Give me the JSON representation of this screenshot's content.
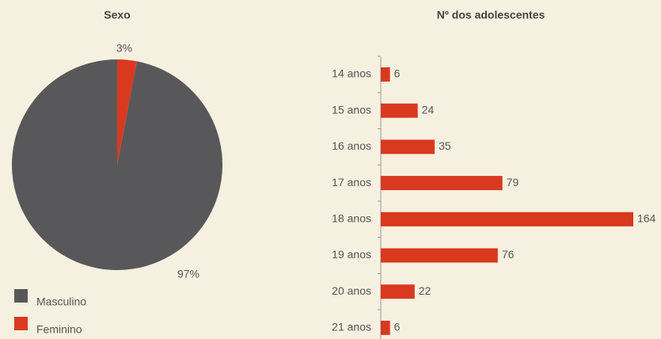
{
  "chart_data": [
    {
      "type": "pie",
      "title": "Sexo",
      "categories": [
        "Masculino",
        "Feminino"
      ],
      "values": [
        97,
        3
      ],
      "value_labels": [
        "97%",
        "3%"
      ],
      "colors": [
        "#58585a",
        "#d9391f"
      ]
    },
    {
      "type": "hbar",
      "title": "Nº dos adolescentes",
      "categories": [
        "14 anos",
        "15 anos",
        "16 anos",
        "17 anos",
        "18 anos",
        "19 anos",
        "20 anos",
        "21 anos"
      ],
      "values": [
        6,
        24,
        35,
        79,
        164,
        76,
        22,
        6
      ],
      "color": "#d9391f"
    }
  ]
}
